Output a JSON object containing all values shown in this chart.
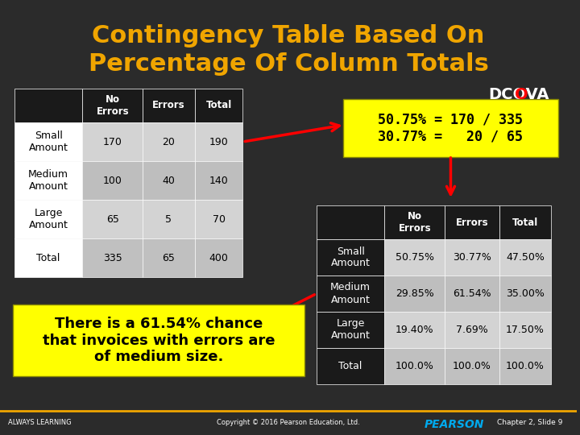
{
  "title_line1": "Contingency Table Based On",
  "title_line2": "Percentage Of Column Totals",
  "title_color": "#F0A500",
  "bg_color": "#2B2B2B",
  "table1": {
    "headers": [
      "No\nErrors",
      "Errors",
      "Total"
    ],
    "rows": [
      [
        "Small\nAmount",
        "170",
        "20",
        "190"
      ],
      [
        "Medium\nAmount",
        "100",
        "40",
        "140"
      ],
      [
        "Large\nAmount",
        "65",
        "5",
        "70"
      ],
      [
        "Total",
        "335",
        "65",
        "400"
      ]
    ],
    "header_bg": "#1A1A1A",
    "header_text": "#FFFFFF",
    "row_bg_odd": "#D3D3D3",
    "row_bg_even": "#BEBEBE",
    "row_text": "#000000",
    "first_col_bg": "#FFFFFF",
    "total_row_bg": "#C0C0C0"
  },
  "table2": {
    "headers": [
      "No\nErrors",
      "Errors",
      "Total"
    ],
    "rows": [
      [
        "Small\nAmount",
        "50.75%",
        "30.77%",
        "47.50%"
      ],
      [
        "Medium\nAmount",
        "29.85%",
        "61.54%",
        "35.00%"
      ],
      [
        "Large\nAmount",
        "19.40%",
        "7.69%",
        "17.50%"
      ],
      [
        "Total",
        "100.0%",
        "100.0%",
        "100.0%"
      ]
    ],
    "header_bg": "#1A1A1A",
    "header_text": "#FFFFFF",
    "row_bg": "#D3D3D3",
    "row_text": "#000000",
    "first_col_bg": "#1A1A1A",
    "first_col_text": "#FFFFFF"
  },
  "annotation_box": {
    "text": "50.75% = 170 / 335\n30.77% =   20 / 65",
    "bg": "#FFFF00",
    "text_color": "#000000"
  },
  "callout_box": {
    "text": "There is a 61.54% chance\nthat invoices with errors are\nof medium size.",
    "bg": "#FFFF00",
    "text_color": "#000000"
  },
  "dcova_text": "DCOVA",
  "footer_left": "ALWAYS LEARNING",
  "footer_center": "Copyright © 2016 Pearson Education, Ltd.",
  "footer_right": "Chapter 2, Slide 9",
  "pearson_text": "PEARSON"
}
